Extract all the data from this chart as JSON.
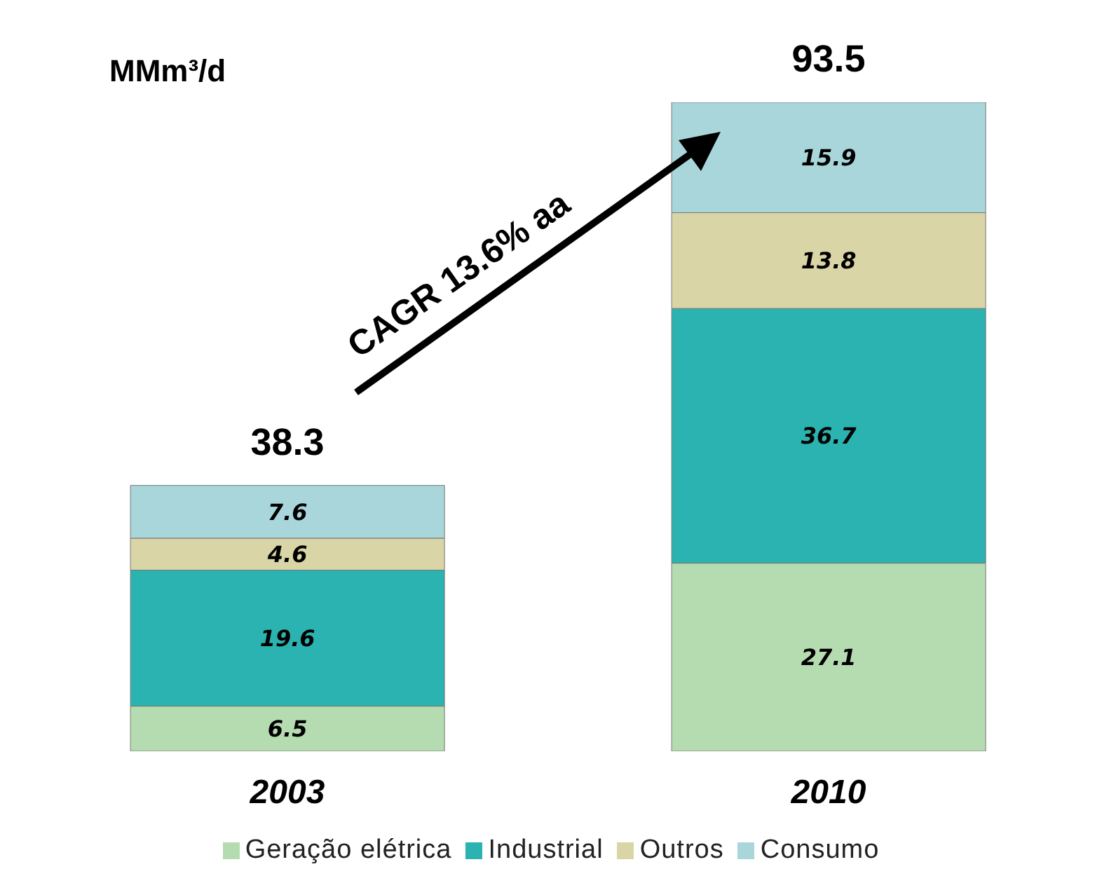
{
  "chart_data": {
    "type": "bar",
    "stacked": true,
    "ylabel": "MMm³/d",
    "categories": [
      "2003",
      "2010"
    ],
    "series": [
      {
        "name": "Geração elétrica",
        "color": "#b5dcb0",
        "values": [
          6.5,
          27.1
        ]
      },
      {
        "name": "Industrial",
        "color": "#2ab3b0",
        "values": [
          19.6,
          36.7
        ]
      },
      {
        "name": "Outros",
        "color": "#d9d5a6",
        "values": [
          4.6,
          13.8
        ]
      },
      {
        "name": "Consumo",
        "color": "#a9d6da",
        "values": [
          7.6,
          15.9
        ]
      }
    ],
    "data_labels": true,
    "totals": [
      "38.3",
      "93.5"
    ],
    "annotations": [
      "CAGR 13.6% aa"
    ],
    "legend": "bottom"
  }
}
